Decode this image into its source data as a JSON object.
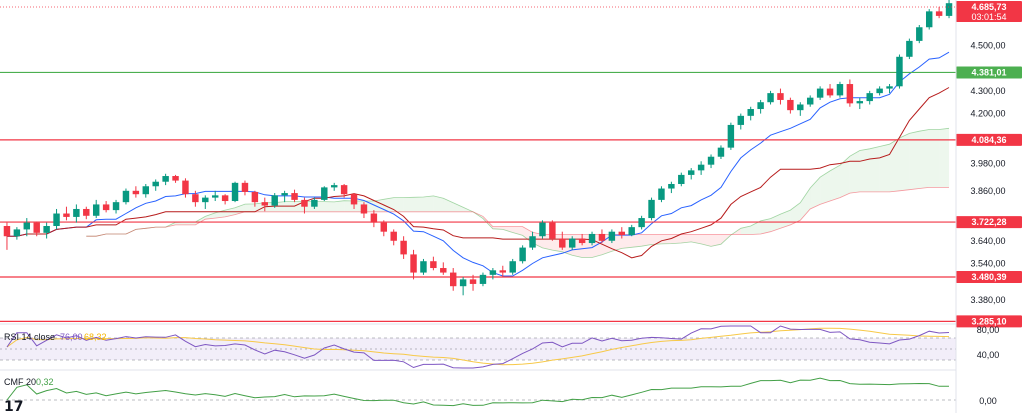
{
  "chart_data": {
    "type": "candlestick",
    "price_axis_ticks": [
      "4.500,00",
      "4.300,00",
      "4.200,00",
      "3.980,00",
      "3.860,00",
      "3.640,00",
      "3.540,00",
      "3.380,00"
    ],
    "rsi_axis_ticks": [
      "80,00",
      "40,00"
    ],
    "cmf_axis_ticks": [
      "0,00"
    ],
    "ylim": [
      3300,
      4700
    ],
    "current_price": "4.685,73",
    "countdown": "03:01:54",
    "levels": [
      {
        "label": "4.381,01",
        "value": 4381.01,
        "color": "#4caf50"
      },
      {
        "label": "4.084,36",
        "value": 4084.36,
        "color": "#f23645"
      },
      {
        "label": "3.722,28",
        "value": 3722.28,
        "color": "#f23645"
      },
      {
        "label": "3.480,39",
        "value": 3480.39,
        "color": "#f23645"
      },
      {
        "label": "3.285,10",
        "value": 3285.1,
        "color": "#f23645"
      }
    ],
    "candles": [
      [
        3705,
        3720,
        3600,
        3660
      ],
      [
        3660,
        3700,
        3645,
        3690
      ],
      [
        3690,
        3740,
        3660,
        3720
      ],
      [
        3720,
        3725,
        3660,
        3675
      ],
      [
        3675,
        3720,
        3650,
        3705
      ],
      [
        3705,
        3780,
        3690,
        3760
      ],
      [
        3760,
        3790,
        3730,
        3745
      ],
      [
        3745,
        3800,
        3720,
        3780
      ],
      [
        3780,
        3790,
        3735,
        3750
      ],
      [
        3750,
        3820,
        3740,
        3800
      ],
      [
        3800,
        3815,
        3765,
        3775
      ],
      [
        3775,
        3820,
        3760,
        3810
      ],
      [
        3810,
        3870,
        3800,
        3860
      ],
      [
        3860,
        3880,
        3830,
        3845
      ],
      [
        3845,
        3890,
        3830,
        3880
      ],
      [
        3880,
        3910,
        3860,
        3900
      ],
      [
        3900,
        3935,
        3885,
        3925
      ],
      [
        3925,
        3930,
        3895,
        3905
      ],
      [
        3905,
        3915,
        3830,
        3845
      ],
      [
        3845,
        3860,
        3790,
        3810
      ],
      [
        3810,
        3840,
        3780,
        3830
      ],
      [
        3830,
        3860,
        3815,
        3840
      ],
      [
        3840,
        3845,
        3800,
        3815
      ],
      [
        3815,
        3900,
        3810,
        3895
      ],
      [
        3895,
        3905,
        3840,
        3855
      ],
      [
        3855,
        3860,
        3790,
        3810
      ],
      [
        3810,
        3830,
        3770,
        3795
      ],
      [
        3795,
        3850,
        3785,
        3840
      ],
      [
        3840,
        3860,
        3810,
        3850
      ],
      [
        3850,
        3865,
        3810,
        3820
      ],
      [
        3820,
        3830,
        3760,
        3790
      ],
      [
        3790,
        3830,
        3780,
        3820
      ],
      [
        3820,
        3880,
        3815,
        3875
      ],
      [
        3875,
        3895,
        3860,
        3885
      ],
      [
        3885,
        3890,
        3830,
        3845
      ],
      [
        3845,
        3850,
        3780,
        3800
      ],
      [
        3800,
        3810,
        3740,
        3760
      ],
      [
        3760,
        3775,
        3700,
        3720
      ],
      [
        3720,
        3730,
        3660,
        3680
      ],
      [
        3680,
        3690,
        3620,
        3640
      ],
      [
        3640,
        3660,
        3560,
        3580
      ],
      [
        3580,
        3600,
        3470,
        3500
      ],
      [
        3500,
        3560,
        3490,
        3550
      ],
      [
        3550,
        3570,
        3510,
        3520
      ],
      [
        3520,
        3545,
        3490,
        3500
      ],
      [
        3500,
        3520,
        3420,
        3440
      ],
      [
        3440,
        3480,
        3400,
        3470
      ],
      [
        3470,
        3490,
        3420,
        3450
      ],
      [
        3450,
        3500,
        3440,
        3490
      ],
      [
        3490,
        3520,
        3470,
        3510
      ],
      [
        3510,
        3530,
        3480,
        3500
      ],
      [
        3500,
        3560,
        3490,
        3550
      ],
      [
        3550,
        3620,
        3540,
        3610
      ],
      [
        3610,
        3680,
        3600,
        3660
      ],
      [
        3660,
        3730,
        3650,
        3720
      ],
      [
        3720,
        3730,
        3640,
        3650
      ],
      [
        3650,
        3680,
        3600,
        3610
      ],
      [
        3610,
        3660,
        3600,
        3650
      ],
      [
        3650,
        3670,
        3620,
        3630
      ],
      [
        3630,
        3680,
        3620,
        3670
      ],
      [
        3670,
        3690,
        3630,
        3640
      ],
      [
        3640,
        3690,
        3630,
        3680
      ],
      [
        3680,
        3700,
        3650,
        3665
      ],
      [
        3665,
        3710,
        3660,
        3700
      ],
      [
        3700,
        3750,
        3690,
        3740
      ],
      [
        3740,
        3830,
        3730,
        3820
      ],
      [
        3820,
        3880,
        3810,
        3870
      ],
      [
        3870,
        3900,
        3850,
        3890
      ],
      [
        3890,
        3940,
        3880,
        3930
      ],
      [
        3930,
        3960,
        3910,
        3950
      ],
      [
        3950,
        3990,
        3930,
        3975
      ],
      [
        3975,
        4020,
        3960,
        4010
      ],
      [
        4010,
        4060,
        4000,
        4050
      ],
      [
        4050,
        4160,
        4040,
        4150
      ],
      [
        4150,
        4200,
        4130,
        4190
      ],
      [
        4190,
        4230,
        4170,
        4220
      ],
      [
        4220,
        4260,
        4200,
        4250
      ],
      [
        4250,
        4300,
        4240,
        4290
      ],
      [
        4290,
        4310,
        4240,
        4260
      ],
      [
        4260,
        4270,
        4200,
        4215
      ],
      [
        4215,
        4250,
        4190,
        4240
      ],
      [
        4240,
        4280,
        4230,
        4270
      ],
      [
        4270,
        4320,
        4260,
        4310
      ],
      [
        4310,
        4330,
        4270,
        4280
      ],
      [
        4280,
        4340,
        4270,
        4330
      ],
      [
        4330,
        4350,
        4230,
        4245
      ],
      [
        4245,
        4270,
        4220,
        4255
      ],
      [
        4255,
        4300,
        4240,
        4290
      ],
      [
        4290,
        4320,
        4280,
        4310
      ],
      [
        4310,
        4330,
        4290,
        4320
      ],
      [
        4320,
        4460,
        4310,
        4450
      ],
      [
        4450,
        4530,
        4440,
        4520
      ],
      [
        4520,
        4590,
        4510,
        4580
      ],
      [
        4580,
        4660,
        4570,
        4650
      ],
      [
        4650,
        4670,
        4620,
        4630
      ],
      [
        4630,
        4700,
        4620,
        4686
      ]
    ],
    "rsi": {
      "label": "RSI 14 close",
      "value": "76,00",
      "ma_value": "68,32"
    },
    "cmf": {
      "label": "CMF 20",
      "value": "0,32"
    }
  },
  "branding": {
    "logo": "17"
  }
}
